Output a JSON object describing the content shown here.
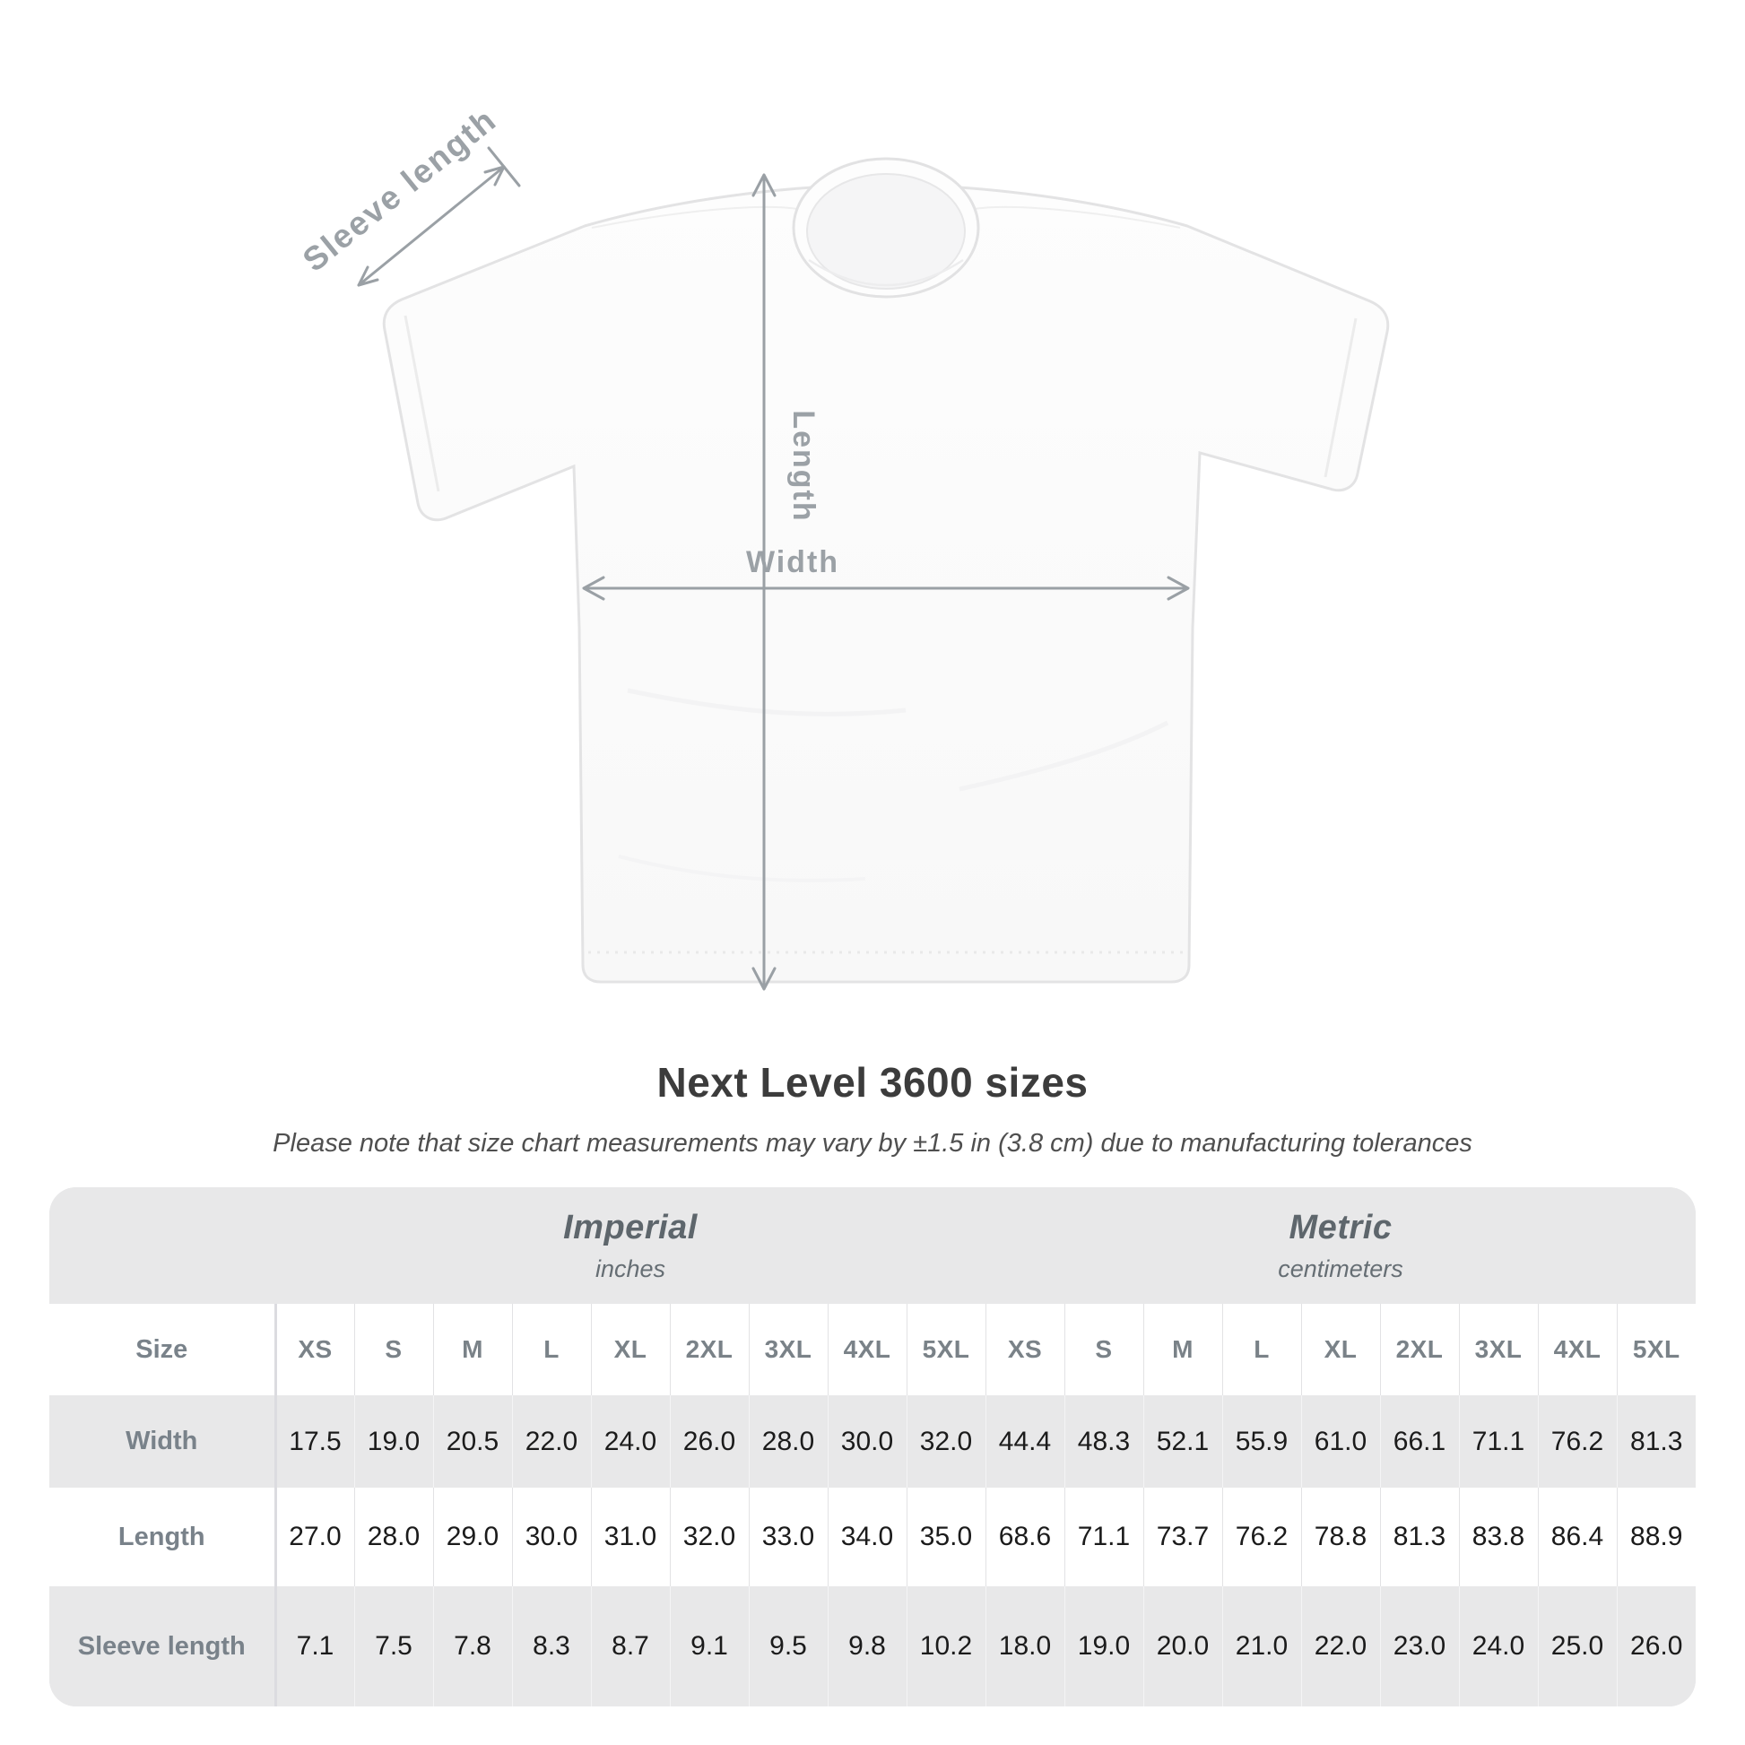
{
  "diagram": {
    "sleeve_label": "Sleeve length",
    "length_label": "Length",
    "width_label": "Width",
    "annotation_color": "#9aa0a5"
  },
  "heading": {
    "title": "Next Level 3600 sizes",
    "subtitle": "Please note that size chart measurements may vary by ±1.5 in (3.8 cm) due to manufacturing tolerances"
  },
  "table": {
    "size_label": "Size",
    "sizes": [
      "XS",
      "S",
      "M",
      "L",
      "XL",
      "2XL",
      "3XL",
      "4XL",
      "5XL"
    ],
    "unit_groups": [
      {
        "name": "Imperial",
        "unit": "inches"
      },
      {
        "name": "Metric",
        "unit": "centimeters"
      }
    ],
    "rows": [
      {
        "label": "Width",
        "imperial": [
          "17.5",
          "19.0",
          "20.5",
          "22.0",
          "24.0",
          "26.0",
          "28.0",
          "30.0",
          "32.0"
        ],
        "metric": [
          "44.4",
          "48.3",
          "52.1",
          "55.9",
          "61.0",
          "66.1",
          "71.1",
          "76.2",
          "81.3"
        ]
      },
      {
        "label": "Length",
        "imperial": [
          "27.0",
          "28.0",
          "29.0",
          "30.0",
          "31.0",
          "32.0",
          "33.0",
          "34.0",
          "35.0"
        ],
        "metric": [
          "68.6",
          "71.1",
          "73.7",
          "76.2",
          "78.8",
          "81.3",
          "83.8",
          "86.4",
          "88.9"
        ]
      },
      {
        "label": "Sleeve length",
        "imperial": [
          "7.1",
          "7.5",
          "7.8",
          "8.3",
          "8.7",
          "9.1",
          "9.5",
          "9.8",
          "10.2"
        ],
        "metric": [
          "18.0",
          "19.0",
          "20.0",
          "21.0",
          "22.0",
          "23.0",
          "24.0",
          "25.0",
          "26.0"
        ]
      }
    ],
    "colors": {
      "band_gray": "#e8e8e9",
      "label_text": "#79828a",
      "unit_text": "#5e666c",
      "value_text": "#1b1b1b"
    }
  }
}
